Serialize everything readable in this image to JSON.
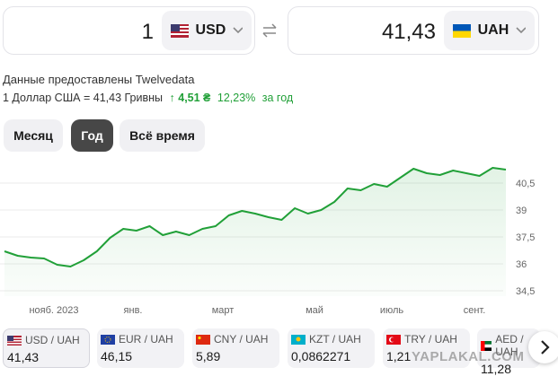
{
  "converter": {
    "from_amount": "1",
    "from_currency": "USD",
    "to_amount": "41,43",
    "to_currency": "UAH"
  },
  "source": "Данные предоставлены Twelvedata",
  "rate_line": {
    "text": "1 Доллар США = 41,43 Гривны",
    "change": "↑ 4,51 ₴",
    "percent": "12,23%",
    "period": "за год"
  },
  "periods": [
    "Месяц",
    "Год",
    "Всё время"
  ],
  "chart": {
    "type": "line",
    "color": "#21a038",
    "values": [
      36.7,
      36.45,
      36.35,
      36.3,
      35.95,
      35.85,
      36.2,
      36.7,
      37.45,
      37.95,
      37.85,
      38.1,
      37.6,
      37.8,
      37.6,
      37.95,
      38.1,
      38.7,
      38.95,
      38.8,
      38.6,
      38.45,
      39.1,
      38.8,
      39.0,
      39.45,
      40.2,
      40.1,
      40.45,
      40.3,
      40.8,
      41.3,
      41.05,
      40.95,
      41.2,
      41.05,
      40.9,
      41.35,
      41.25
    ],
    "ylim": [
      34.2,
      42.2
    ],
    "yticks": [
      {
        "value": 34.5,
        "label": "34,5"
      },
      36,
      {
        "value": 37.5,
        "label": "37,5"
      },
      39,
      {
        "value": 40.5,
        "label": "40,5"
      }
    ],
    "xlabels": [
      "нояб. 2023",
      "янв.",
      "март",
      "май",
      "июль",
      "сент."
    ],
    "grid": true
  },
  "cards": [
    {
      "pair": "USD / UAH",
      "rate": "41,43"
    },
    {
      "pair": "EUR / UAH",
      "rate": "46,15"
    },
    {
      "pair": "CNY / UAH",
      "rate": "5,89"
    },
    {
      "pair": "KZT / UAH",
      "rate": "0,0862271"
    },
    {
      "pair": "TRY / UAH",
      "rate": "1,21"
    },
    {
      "pair": "AED / UAH",
      "rate": "11,28"
    }
  ],
  "watermark": "YAPLAKAL.COM"
}
